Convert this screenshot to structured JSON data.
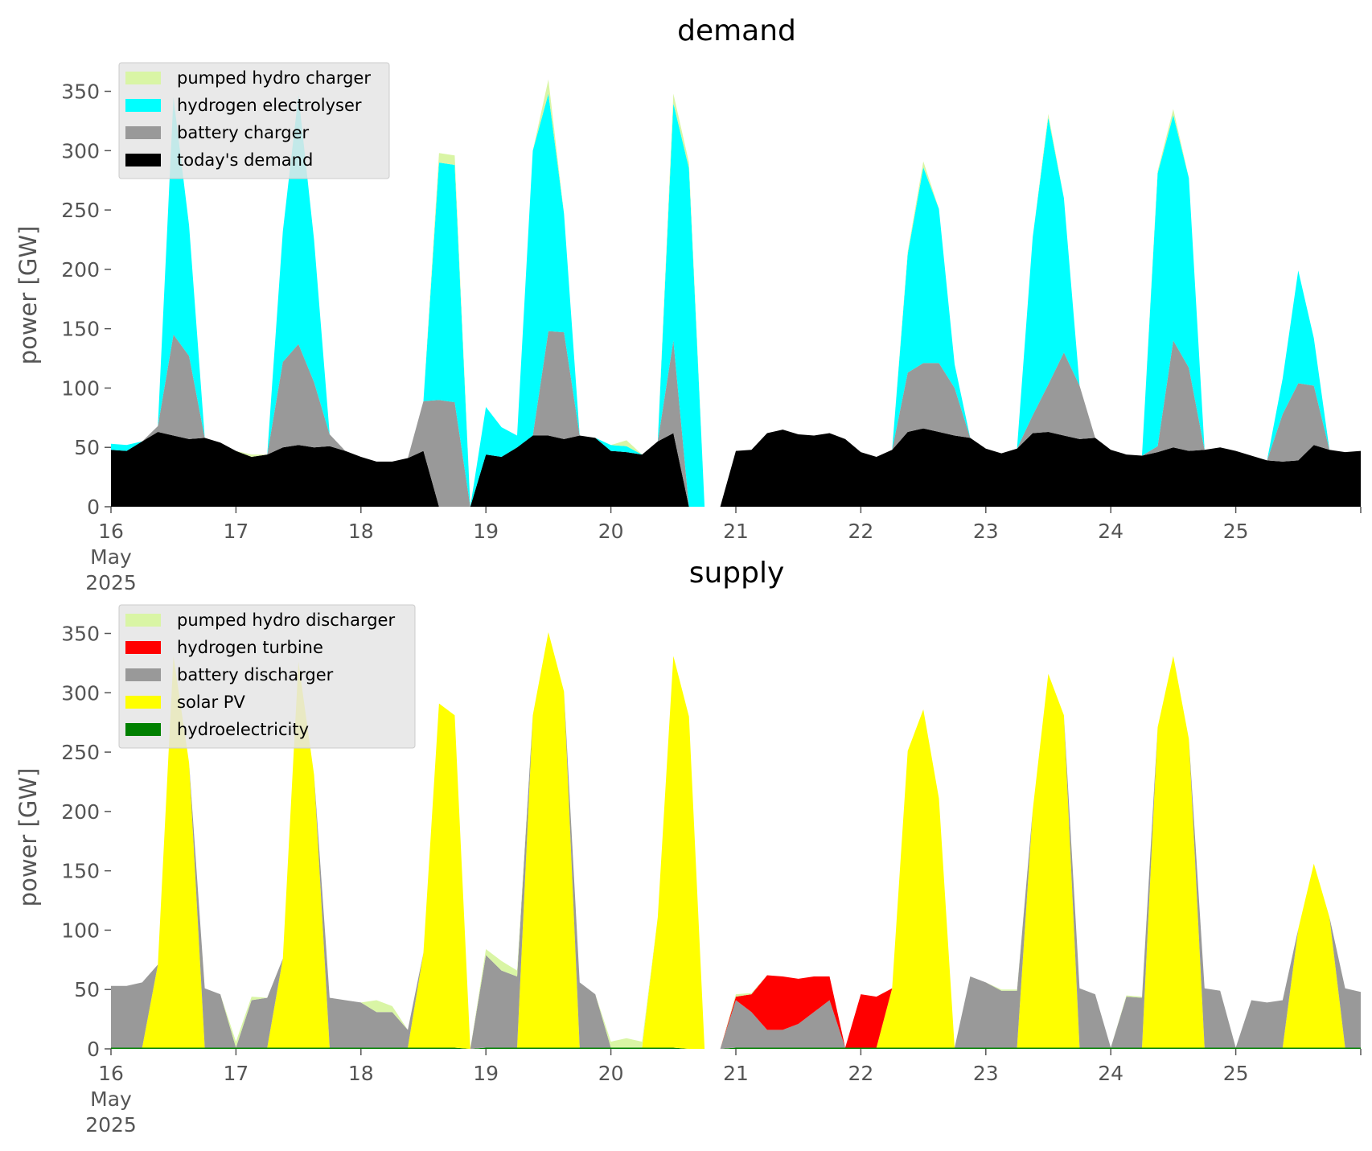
{
  "chart_data": [
    {
      "type": "area",
      "stacked": true,
      "title": "demand",
      "ylabel": "power [GW]",
      "xlabel": "",
      "ylim": [
        0,
        370
      ],
      "yticks": [
        0,
        50,
        100,
        150,
        200,
        250,
        300,
        350
      ],
      "xlim": [
        "2025-05-16 00:00",
        "2025-05-26 00:00"
      ],
      "xticks": [
        {
          "label": "16",
          "sub": [
            "May",
            "2025"
          ],
          "date": "2025-05-16"
        },
        {
          "label": "17",
          "date": "2025-05-17"
        },
        {
          "label": "18",
          "date": "2025-05-18"
        },
        {
          "label": "19",
          "date": "2025-05-19"
        },
        {
          "label": "20",
          "date": "2025-05-20"
        },
        {
          "label": "21",
          "date": "2025-05-21"
        },
        {
          "label": "22",
          "date": "2025-05-22"
        },
        {
          "label": "23",
          "date": "2025-05-23"
        },
        {
          "label": "24",
          "date": "2025-05-24"
        },
        {
          "label": "25",
          "date": "2025-05-25"
        }
      ],
      "grid": false,
      "legend_position": "top-left",
      "legend": [
        "pumped hydro charger",
        "hydrogen electrolyser",
        "battery charger",
        "today's demand"
      ],
      "x_times": [
        "2025-05-16 00:00",
        "2025-05-16 03:00",
        "2025-05-16 06:00",
        "2025-05-16 09:00",
        "2025-05-16 12:00",
        "2025-05-16 15:00",
        "2025-05-16 18:00",
        "2025-05-16 21:00",
        "2025-05-17 00:00",
        "2025-05-17 03:00",
        "2025-05-17 06:00",
        "2025-05-17 09:00",
        "2025-05-17 12:00",
        "2025-05-17 15:00",
        "2025-05-17 18:00",
        "2025-05-17 21:00",
        "2025-05-18 00:00",
        "2025-05-18 03:00",
        "2025-05-18 06:00",
        "2025-05-18 09:00",
        "2025-05-18 12:00",
        "2025-05-18 15:00",
        "2025-05-18 18:00",
        "2025-05-18 21:00",
        "2025-05-19 00:00",
        "2025-05-19 03:00",
        "2025-05-19 06:00",
        "2025-05-19 09:00",
        "2025-05-19 12:00",
        "2025-05-19 15:00",
        "2025-05-19 18:00",
        "2025-05-19 21:00",
        "2025-05-20 00:00",
        "2025-05-20 03:00",
        "2025-05-20 06:00",
        "2025-05-20 09:00",
        "2025-05-20 12:00",
        "2025-05-20 15:00",
        "2025-05-20 18:00",
        "2025-05-20 21:00",
        "2025-05-21 00:00",
        "2025-05-21 03:00",
        "2025-05-21 06:00",
        "2025-05-21 09:00",
        "2025-05-21 12:00",
        "2025-05-21 15:00",
        "2025-05-21 18:00",
        "2025-05-21 21:00",
        "2025-05-22 00:00",
        "2025-05-22 03:00",
        "2025-05-22 06:00",
        "2025-05-22 09:00",
        "2025-05-22 12:00",
        "2025-05-22 15:00",
        "2025-05-22 18:00",
        "2025-05-22 21:00",
        "2025-05-23 00:00",
        "2025-05-23 03:00",
        "2025-05-23 06:00",
        "2025-05-23 09:00",
        "2025-05-23 12:00",
        "2025-05-23 15:00",
        "2025-05-23 18:00",
        "2025-05-23 21:00",
        "2025-05-24 00:00",
        "2025-05-24 03:00",
        "2025-05-24 06:00",
        "2025-05-24 09:00",
        "2025-05-24 12:00",
        "2025-05-24 15:00",
        "2025-05-24 18:00",
        "2025-05-24 21:00",
        "2025-05-25 00:00",
        "2025-05-25 03:00",
        "2025-05-25 06:00",
        "2025-05-25 09:00",
        "2025-05-25 12:00",
        "2025-05-25 15:00",
        "2025-05-25 18:00",
        "2025-05-25 21:00",
        "2025-05-26 00:00"
      ],
      "series": [
        {
          "name": "today's demand",
          "color": "#000000",
          "values": [
            48,
            47,
            55,
            63,
            60,
            57,
            58,
            54,
            47,
            42,
            44,
            50,
            52,
            50,
            51,
            47,
            42,
            38,
            38,
            41,
            47,
            0,
            0,
            0,
            44,
            42,
            50,
            60,
            60,
            57,
            60,
            58,
            47,
            46,
            44,
            55,
            62,
            0,
            0,
            0,
            47,
            48,
            62,
            65,
            61,
            60,
            62,
            57,
            46,
            42,
            48,
            63,
            66,
            63,
            60,
            58,
            49,
            45,
            49,
            62,
            63,
            60,
            57,
            58,
            48,
            44,
            43,
            46,
            50,
            47,
            48,
            50,
            47,
            43,
            39,
            38,
            39,
            52,
            48,
            46,
            47
          ]
        },
        {
          "name": "battery charger",
          "color": "#999999",
          "values": [
            0,
            0,
            0,
            5,
            85,
            70,
            0,
            0,
            0,
            0,
            0,
            72,
            85,
            55,
            10,
            0,
            0,
            0,
            0,
            0,
            42,
            90,
            88,
            0,
            0,
            0,
            0,
            0,
            88,
            90,
            0,
            0,
            0,
            0,
            0,
            0,
            78,
            0,
            0,
            0,
            0,
            0,
            0,
            0,
            0,
            0,
            0,
            0,
            0,
            0,
            0,
            50,
            55,
            58,
            40,
            0,
            0,
            0,
            0,
            15,
            40,
            70,
            45,
            0,
            0,
            0,
            0,
            5,
            90,
            70,
            0,
            0,
            0,
            0,
            0,
            40,
            65,
            50,
            0,
            0,
            0
          ]
        },
        {
          "name": "hydrogen electrolyser",
          "color": "#00ffff",
          "values": [
            5,
            5,
            0,
            0,
            200,
            110,
            0,
            0,
            0,
            0,
            0,
            110,
            210,
            120,
            0,
            0,
            0,
            0,
            0,
            0,
            0,
            200,
            200,
            0,
            40,
            25,
            10,
            240,
            200,
            100,
            0,
            0,
            5,
            5,
            0,
            0,
            200,
            285,
            0,
            0,
            0,
            0,
            0,
            0,
            0,
            0,
            0,
            0,
            0,
            0,
            0,
            100,
            165,
            130,
            20,
            0,
            0,
            0,
            0,
            150,
            225,
            130,
            0,
            0,
            0,
            0,
            0,
            230,
            190,
            160,
            0,
            0,
            0,
            0,
            0,
            30,
            95,
            40,
            0,
            0,
            0
          ]
        },
        {
          "name": "pumped hydro charger",
          "color": "#d9f5a5",
          "values": [
            0,
            0,
            0,
            0,
            0,
            0,
            0,
            0,
            0,
            2,
            0,
            0,
            0,
            0,
            0,
            0,
            0,
            0,
            0,
            0,
            0,
            8,
            8,
            0,
            0,
            0,
            0,
            0,
            12,
            0,
            0,
            0,
            0,
            5,
            0,
            0,
            8,
            5,
            0,
            0,
            0,
            0,
            0,
            0,
            0,
            0,
            0,
            0,
            0,
            0,
            0,
            2,
            5,
            0,
            0,
            0,
            0,
            0,
            0,
            0,
            3,
            0,
            0,
            0,
            0,
            0,
            0,
            2,
            5,
            0,
            0,
            0,
            0,
            0,
            0,
            0,
            0,
            0,
            0,
            0,
            0
          ]
        }
      ]
    },
    {
      "type": "area",
      "stacked": true,
      "title": "supply",
      "ylabel": "power [GW]",
      "xlabel": "",
      "ylim": [
        0,
        370
      ],
      "yticks": [
        0,
        50,
        100,
        150,
        200,
        250,
        300,
        350
      ],
      "xlim": [
        "2025-05-16 00:00",
        "2025-05-26 00:00"
      ],
      "xticks": [
        {
          "label": "16",
          "sub": [
            "May",
            "2025"
          ],
          "date": "2025-05-16"
        },
        {
          "label": "17",
          "date": "2025-05-17"
        },
        {
          "label": "18",
          "date": "2025-05-18"
        },
        {
          "label": "19",
          "date": "2025-05-19"
        },
        {
          "label": "20",
          "date": "2025-05-20"
        },
        {
          "label": "21",
          "date": "2025-05-21"
        },
        {
          "label": "22",
          "date": "2025-05-22"
        },
        {
          "label": "23",
          "date": "2025-05-23"
        },
        {
          "label": "24",
          "date": "2025-05-24"
        },
        {
          "label": "25",
          "date": "2025-05-25"
        }
      ],
      "grid": false,
      "legend_position": "top-left",
      "legend": [
        "pumped hydro discharger",
        "hydrogen turbine",
        "battery discharger",
        "solar PV",
        "hydroelectricity"
      ],
      "x_times": [
        "2025-05-16 00:00",
        "2025-05-16 03:00",
        "2025-05-16 06:00",
        "2025-05-16 09:00",
        "2025-05-16 12:00",
        "2025-05-16 15:00",
        "2025-05-16 18:00",
        "2025-05-16 21:00",
        "2025-05-17 00:00",
        "2025-05-17 03:00",
        "2025-05-17 06:00",
        "2025-05-17 09:00",
        "2025-05-17 12:00",
        "2025-05-17 15:00",
        "2025-05-17 18:00",
        "2025-05-17 21:00",
        "2025-05-18 00:00",
        "2025-05-18 03:00",
        "2025-05-18 06:00",
        "2025-05-18 09:00",
        "2025-05-18 12:00",
        "2025-05-18 15:00",
        "2025-05-18 18:00",
        "2025-05-18 21:00",
        "2025-05-19 00:00",
        "2025-05-19 03:00",
        "2025-05-19 06:00",
        "2025-05-19 09:00",
        "2025-05-19 12:00",
        "2025-05-19 15:00",
        "2025-05-19 18:00",
        "2025-05-19 21:00",
        "2025-05-20 00:00",
        "2025-05-20 03:00",
        "2025-05-20 06:00",
        "2025-05-20 09:00",
        "2025-05-20 12:00",
        "2025-05-20 15:00",
        "2025-05-20 18:00",
        "2025-05-20 21:00",
        "2025-05-21 00:00",
        "2025-05-21 03:00",
        "2025-05-21 06:00",
        "2025-05-21 09:00",
        "2025-05-21 12:00",
        "2025-05-21 15:00",
        "2025-05-21 18:00",
        "2025-05-21 21:00",
        "2025-05-22 00:00",
        "2025-05-22 03:00",
        "2025-05-22 06:00",
        "2025-05-22 09:00",
        "2025-05-22 12:00",
        "2025-05-22 15:00",
        "2025-05-22 18:00",
        "2025-05-22 21:00",
        "2025-05-23 00:00",
        "2025-05-23 03:00",
        "2025-05-23 06:00",
        "2025-05-23 09:00",
        "2025-05-23 12:00",
        "2025-05-23 15:00",
        "2025-05-23 18:00",
        "2025-05-23 21:00",
        "2025-05-24 00:00",
        "2025-05-24 03:00",
        "2025-05-24 06:00",
        "2025-05-24 09:00",
        "2025-05-24 12:00",
        "2025-05-24 15:00",
        "2025-05-24 18:00",
        "2025-05-24 21:00",
        "2025-05-25 00:00",
        "2025-05-25 03:00",
        "2025-05-25 06:00",
        "2025-05-25 09:00",
        "2025-05-25 12:00",
        "2025-05-25 15:00",
        "2025-05-25 18:00",
        "2025-05-25 21:00",
        "2025-05-26 00:00"
      ],
      "series": [
        {
          "name": "hydroelectricity",
          "color": "#008000",
          "values": [
            1,
            1,
            1,
            1,
            1,
            1,
            1,
            1,
            1,
            1,
            1,
            1,
            1,
            1,
            1,
            1,
            1,
            1,
            1,
            1,
            1,
            1,
            1,
            0,
            1,
            1,
            1,
            1,
            1,
            1,
            1,
            1,
            1,
            1,
            1,
            1,
            1,
            0,
            0,
            0,
            1,
            1,
            1,
            1,
            1,
            1,
            1,
            1,
            1,
            1,
            1,
            1,
            1,
            1,
            1,
            1,
            1,
            1,
            1,
            1,
            1,
            1,
            1,
            1,
            1,
            1,
            1,
            1,
            1,
            1,
            1,
            1,
            1,
            1,
            1,
            1,
            1,
            1,
            1,
            1,
            1
          ]
        },
        {
          "name": "solar PV",
          "color": "#ffff00",
          "values": [
            0,
            0,
            0,
            70,
            330,
            240,
            0,
            0,
            0,
            0,
            0,
            75,
            325,
            230,
            0,
            0,
            0,
            0,
            0,
            0,
            80,
            290,
            280,
            0,
            0,
            0,
            0,
            280,
            350,
            300,
            0,
            0,
            0,
            0,
            0,
            110,
            330,
            280,
            0,
            0,
            0,
            0,
            0,
            0,
            0,
            0,
            0,
            0,
            0,
            0,
            50,
            250,
            285,
            210,
            0,
            0,
            0,
            0,
            0,
            200,
            315,
            280,
            0,
            0,
            0,
            0,
            0,
            270,
            330,
            260,
            0,
            0,
            0,
            0,
            0,
            0,
            100,
            155,
            110,
            0,
            0
          ]
        },
        {
          "name": "battery discharger",
          "color": "#999999",
          "values": [
            52,
            52,
            55,
            0,
            0,
            0,
            50,
            45,
            0,
            40,
            42,
            0,
            0,
            0,
            42,
            40,
            38,
            30,
            30,
            15,
            0,
            0,
            0,
            0,
            78,
            65,
            60,
            0,
            0,
            0,
            55,
            45,
            0,
            0,
            0,
            0,
            0,
            0,
            0,
            0,
            40,
            30,
            15,
            15,
            20,
            30,
            40,
            0,
            0,
            0,
            0,
            0,
            0,
            0,
            0,
            60,
            55,
            48,
            48,
            0,
            0,
            0,
            50,
            45,
            0,
            43,
            42,
            0,
            0,
            0,
            50,
            48,
            0,
            40,
            38,
            40,
            0,
            0,
            0,
            50,
            47
          ]
        },
        {
          "name": "hydrogen turbine",
          "color": "#ff0000",
          "values": [
            0,
            0,
            0,
            0,
            0,
            0,
            0,
            0,
            0,
            0,
            0,
            0,
            0,
            0,
            0,
            0,
            0,
            0,
            0,
            0,
            0,
            0,
            0,
            0,
            0,
            0,
            0,
            0,
            0,
            0,
            0,
            0,
            0,
            0,
            0,
            0,
            0,
            0,
            0,
            0,
            3,
            15,
            46,
            45,
            38,
            30,
            20,
            0,
            45,
            43,
            0,
            0,
            0,
            0,
            0,
            0,
            0,
            0,
            0,
            0,
            0,
            0,
            0,
            0,
            0,
            0,
            0,
            0,
            0,
            0,
            0,
            0,
            0,
            0,
            0,
            0,
            0,
            0,
            0,
            0,
            0
          ]
        },
        {
          "name": "pumped hydro discharger",
          "color": "#d9f5a5",
          "values": [
            0,
            0,
            0,
            0,
            0,
            0,
            0,
            0,
            5,
            3,
            0,
            0,
            0,
            0,
            0,
            0,
            0,
            10,
            5,
            0,
            0,
            0,
            0,
            0,
            5,
            8,
            5,
            0,
            0,
            0,
            0,
            0,
            5,
            8,
            5,
            0,
            0,
            0,
            0,
            0,
            2,
            1,
            0,
            0,
            0,
            0,
            0,
            0,
            0,
            0,
            0,
            0,
            0,
            0,
            0,
            0,
            0,
            1,
            1,
            0,
            0,
            0,
            0,
            0,
            0,
            1,
            1,
            0,
            0,
            0,
            0,
            0,
            0,
            0,
            0,
            0,
            0,
            0,
            0,
            0,
            0
          ]
        }
      ]
    }
  ]
}
